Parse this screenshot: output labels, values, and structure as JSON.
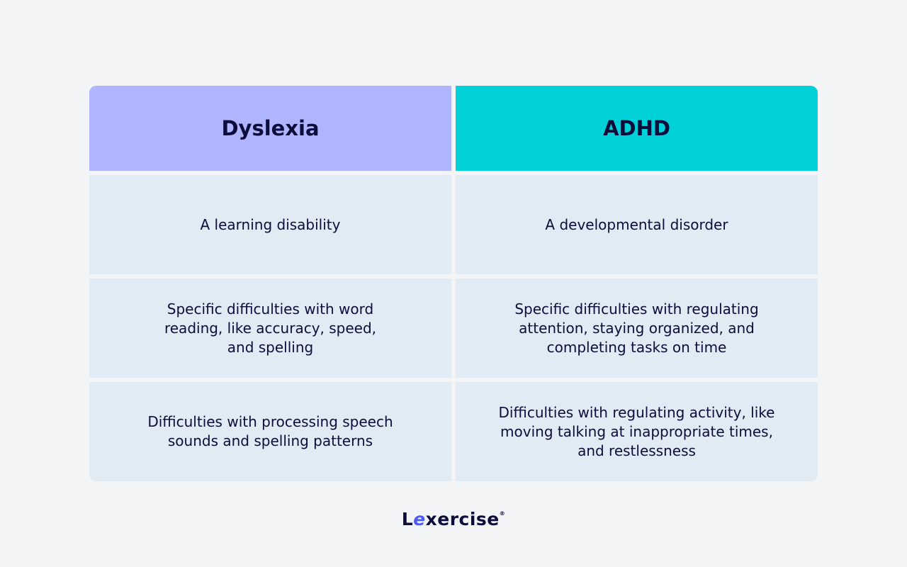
{
  "headers": [
    "Dyslexia",
    "ADHD"
  ],
  "rows": [
    [
      "A learning disability",
      "A developmental disorder"
    ],
    [
      "Specific difficulties with word reading, like accuracy, speed, and spelling",
      "Specific difficulties with regulating attention, staying organized, and completing tasks on time"
    ],
    [
      "Difficulties with processing speech sounds and spelling patterns",
      "Difficulties with regulating activity, like moving talking at inappropriate times, and restlessness"
    ]
  ],
  "colors": {
    "dyslexia_header": "#afb5fe",
    "adhd_header": "#00d1d8",
    "cell": "#e0ebf4",
    "logo_accent": "#4c5cf5"
  },
  "logo": {
    "first": "L",
    "accent": "e",
    "rest": "xercise",
    "mark": "®"
  }
}
